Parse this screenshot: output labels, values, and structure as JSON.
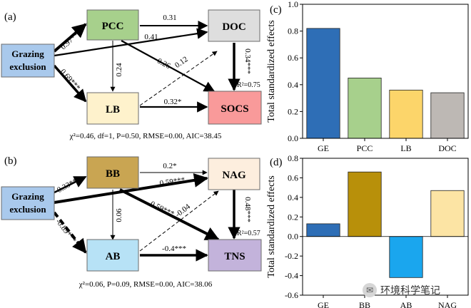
{
  "diagram_top": {
    "panel_label": "(a)",
    "nodes": {
      "grazing": {
        "text": "Grazing exclusion",
        "fill": "#a9c9ec"
      },
      "pcc": {
        "text": "PCC",
        "fill": "#a7d08c"
      },
      "doc": {
        "text": "DOC",
        "fill": "#dedede"
      },
      "lb": {
        "text": "LB",
        "fill": "#fef2cc"
      },
      "socs": {
        "text": "SOCS",
        "fill": "#f99a9a"
      }
    },
    "paths": {
      "ge_pcc": "0.97***",
      "ge_lb": "0.69***",
      "pcc_doc": "0.31",
      "ge_doc": "0.41",
      "pcc_lb": "0.24",
      "pcc_socs": "0.26",
      "lb_doc": "0.12",
      "doc_socs": "0.34***",
      "lb_socs": "0.32*"
    },
    "r2": "R²=0.75",
    "fit": "χ²=0.46, df=1, P=0.50, RMSE=0.00, AIC=38.45"
  },
  "diagram_bottom": {
    "panel_label": "(b)",
    "nodes": {
      "grazing": {
        "text": "Grazing exclusion",
        "fill": "#a9c9ec"
      },
      "bb": {
        "text": "BB",
        "fill": "#c9a552"
      },
      "nag": {
        "text": "NAG",
        "fill": "#fdeede"
      },
      "ab": {
        "text": "AB",
        "fill": "#b7e2f6"
      },
      "tns": {
        "text": "TNS",
        "fill": "#c3b3db"
      }
    },
    "paths": {
      "ge_bb": "0.33***",
      "ge_ab": "-0.89***",
      "bb_nag": "0.2*",
      "ge_nag": "0.59***",
      "bb_ab": "0.06",
      "bb_tns": "0.59***",
      "ab_nag": "-0.04",
      "nag_tns": "0.48***",
      "ab_tns": "-0.4***"
    },
    "r2": "R²=0.57",
    "fit": "χ²=0.06, P=0.09, RMSE=0.00, AIC=38.06"
  },
  "chart_data": [
    {
      "panel_label": "(c)",
      "type": "bar",
      "categories": [
        "GE",
        "PCC",
        "LB",
        "DOC"
      ],
      "values": [
        0.82,
        0.45,
        0.36,
        0.34
      ],
      "colors": [
        "#2e6eb6",
        "#a7d08c",
        "#fcd56a",
        "#bdb8b4"
      ],
      "ylabel": "Total standardized effects",
      "ylim": [
        0,
        1.0
      ],
      "yticks": [
        "0.0",
        "0.2",
        "0.4",
        "0.6",
        "0.8",
        "1.0"
      ],
      "grid": false
    },
    {
      "panel_label": "(d)",
      "type": "bar",
      "categories": [
        "GE",
        "BB",
        "AB",
        "NAG"
      ],
      "values": [
        0.13,
        0.66,
        -0.42,
        0.47
      ],
      "colors": [
        "#2e6eb6",
        "#b8900a",
        "#1aa6ee",
        "#fce4a4"
      ],
      "ylabel": "Total standardized effects",
      "ylim": [
        -0.6,
        0.8
      ],
      "yticks": [
        "-0.6",
        "-0.4",
        "-0.2",
        "0.0",
        "0.2",
        "0.4",
        "0.6",
        "0.8"
      ],
      "grid": false
    }
  ],
  "watermark": {
    "text": "环境科学笔记",
    "icon": "wechat-icon"
  }
}
